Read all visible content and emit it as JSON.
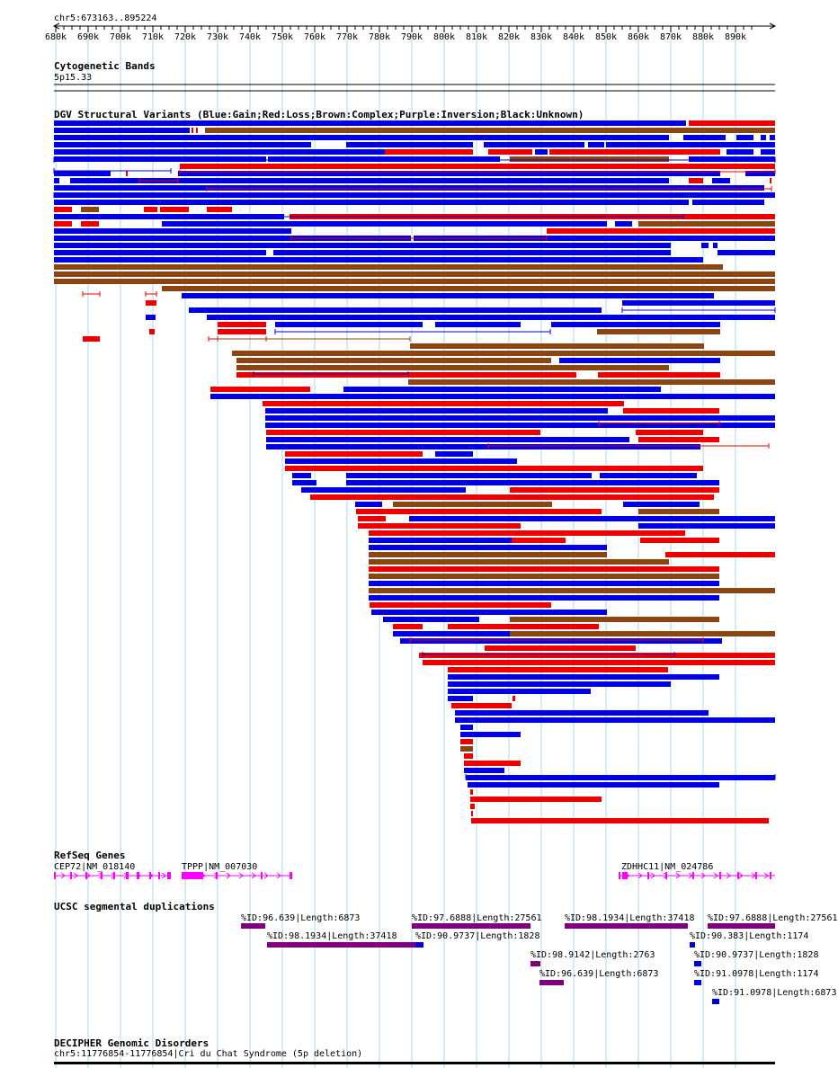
{
  "ruler": {
    "position_label": "chr5:673163..895224",
    "start": 673163,
    "end": 895224,
    "tick_labels": [
      "680k",
      "690k",
      "700k",
      "710k",
      "720k",
      "730k",
      "740k",
      "750k",
      "760k",
      "770k",
      "780k",
      "790k",
      "800k",
      "810k",
      "820k",
      "830k",
      "840k",
      "850k",
      "860k",
      "870k",
      "880k",
      "890k"
    ]
  },
  "colors": {
    "gain": "#0000e0",
    "loss": "#ee0000",
    "complex": "#8b4513",
    "inversion": "#800080",
    "gene": "#ff00ff",
    "gridline": "#a8d8ec"
  },
  "tracks": {
    "cytoband": {
      "title": "Cytogenetic Bands",
      "band_label": "5p15.33"
    },
    "dgv": {
      "title": "DGV Structural Variants (Blue:Gain;Red:Loss;Brown:Complex;Purple:Inversion;Black:Unknown)"
    },
    "refseq": {
      "title": "RefSeq Genes",
      "genes": [
        {
          "label": "CEP72|NM_018140"
        },
        {
          "label": "TPPP|NM_007030"
        },
        {
          "label": "ZDHHC11|NM_024786"
        }
      ]
    },
    "segdup": {
      "title": "UCSC segmental duplications",
      "features": [
        {
          "label": "%ID:96.639|Length:6873"
        },
        {
          "label": "%ID:97.6888|Length:27561"
        },
        {
          "label": "%ID:98.1934|Length:37418"
        },
        {
          "label": "%ID:97.6888|Length:27561"
        },
        {
          "label": "%ID:98.1934|Length:37418"
        },
        {
          "label": "%ID:90.9737|Length:1828"
        },
        {
          "label": "%ID:90.383|Length:1174"
        },
        {
          "label": "%ID:98.9142|Length:2763"
        },
        {
          "label": "%ID:90.9737|Length:1828"
        },
        {
          "label": "%ID:96.639|Length:6873"
        },
        {
          "label": "%ID:91.0978|Length:1174"
        },
        {
          "label": "%ID:91.0978|Length:6873"
        }
      ]
    },
    "decipher": {
      "title": "DECIPHER Genomic Disorders",
      "feature_label": "chr5:11776854-11776854|Cri du Chat Syndrome (5p deletion)"
    }
  }
}
